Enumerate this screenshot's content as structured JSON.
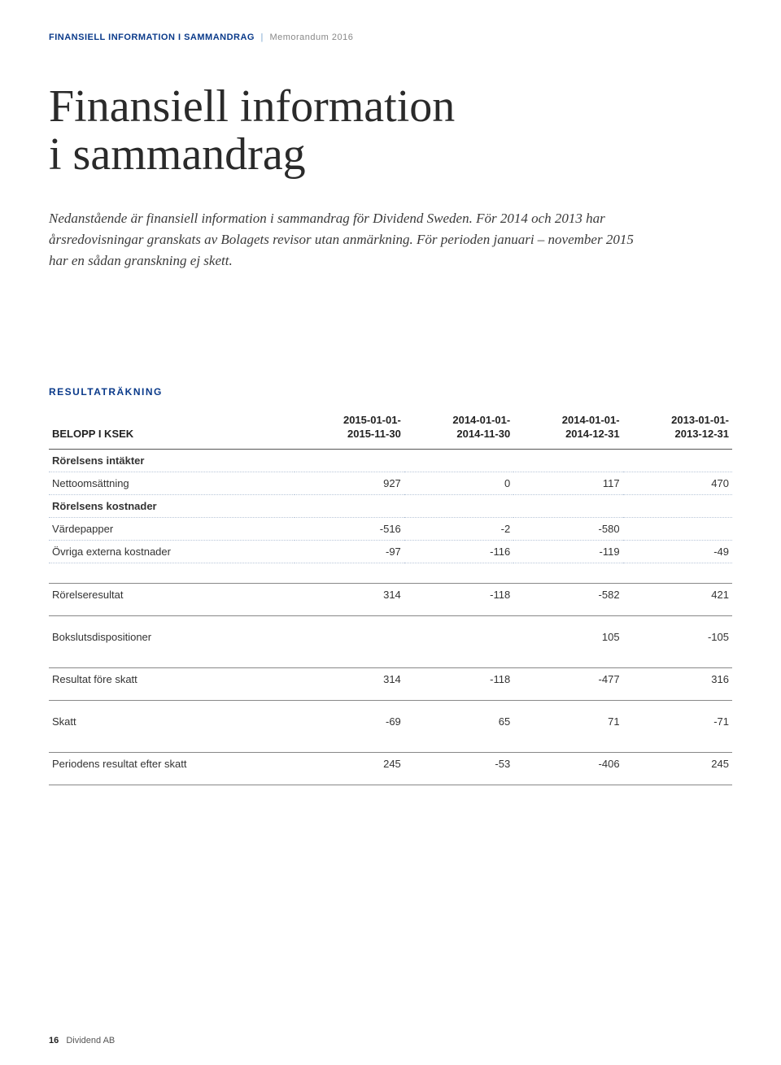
{
  "header": {
    "section": "FINANSIELL INFORMATION I SAMMANDRAG",
    "doc": "Memorandum 2016"
  },
  "title_line1": "Finansiell information",
  "title_line2": "i sammandrag",
  "intro": "Nedanstående är finansiell information i sammandrag för Dividend Sweden. För 2014 och 2013 har årsredovisningar granskats av Bolagets revisor utan anmärkning. För perioden januari – november 2015 har en sådan granskning ej skett.",
  "table": {
    "section_label": "RESULTATRÄKNING",
    "head_label": "BELOPP I KSEK",
    "columns": [
      {
        "l1": "2015-01-01-",
        "l2": "2015-11-30"
      },
      {
        "l1": "2014-01-01-",
        "l2": "2014-11-30"
      },
      {
        "l1": "2014-01-01-",
        "l2": "2014-12-31"
      },
      {
        "l1": "2013-01-01-",
        "l2": "2013-12-31"
      }
    ],
    "rows": {
      "intakter_head": "Rörelsens intäkter",
      "nettoomsattning": {
        "label": "Nettoomsättning",
        "v": [
          "927",
          "0",
          "117",
          "470"
        ]
      },
      "kostnader_head": "Rörelsens kostnader",
      "vardepapper": {
        "label": "Värdepapper",
        "v": [
          "-516",
          "-2",
          "-580",
          ""
        ]
      },
      "ovriga": {
        "label": "Övriga externa kostnader",
        "v": [
          "-97",
          "-116",
          "-119",
          "-49"
        ]
      },
      "rorelseresultat": {
        "label": "Rörelseresultat",
        "v": [
          "314",
          "-118",
          "-582",
          "421"
        ]
      },
      "bokslut": {
        "label": "Bokslutsdispositioner",
        "v": [
          "",
          "",
          "105",
          "-105"
        ]
      },
      "fore_skatt": {
        "label": "Resultat före skatt",
        "v": [
          "314",
          "-118",
          "-477",
          "316"
        ]
      },
      "skatt": {
        "label": "Skatt",
        "v": [
          "-69",
          "65",
          "71",
          "-71"
        ]
      },
      "efter_skatt": {
        "label": "Periodens resultat efter skatt",
        "v": [
          "245",
          "-53",
          "-406",
          "245"
        ]
      }
    }
  },
  "footer": {
    "page": "16",
    "company": "Dividend AB"
  }
}
